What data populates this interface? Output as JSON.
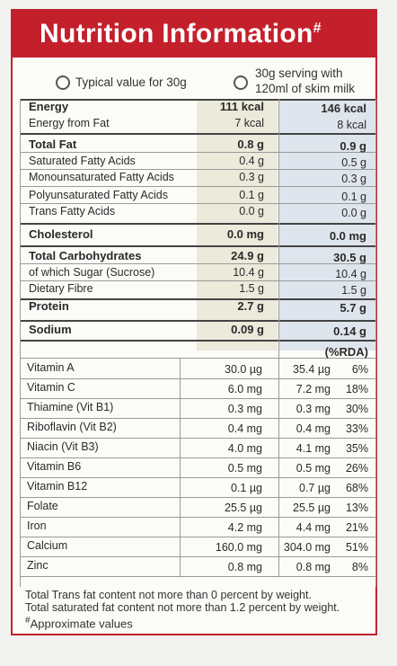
{
  "header": {
    "title": "Nutrition Information",
    "mark": "#"
  },
  "legend": {
    "typical": "Typical value for 30g",
    "serving_line1": "30g serving with",
    "serving_line2": "120ml of skim milk"
  },
  "macros": [
    {
      "label": "Energy",
      "bold": true,
      "v30": "111 kcal",
      "vmilk": "146 kcal"
    },
    {
      "label": "Energy from Fat",
      "bold": false,
      "v30": "7 kcal",
      "vmilk": "8 kcal"
    },
    {
      "label": "Total Fat",
      "bold": true,
      "v30": "0.8 g",
      "vmilk": "0.9 g"
    },
    {
      "label": "Saturated Fatty Acids",
      "bold": false,
      "v30": "0.4 g",
      "vmilk": "0.5 g"
    },
    {
      "label": "Monounsaturated Fatty Acids",
      "bold": false,
      "v30": "0.3 g",
      "vmilk": "0.3 g"
    },
    {
      "label": "Polyunsaturated Fatty Acids",
      "bold": false,
      "v30": "0.1 g",
      "vmilk": "0.1 g"
    },
    {
      "label": "Trans Fatty Acids",
      "bold": false,
      "v30": "0.0 g",
      "vmilk": "0.0 g"
    },
    {
      "label": "Cholesterol",
      "bold": true,
      "v30": "0.0 mg",
      "vmilk": "0.0 mg"
    },
    {
      "label": "Total Carbohydrates",
      "bold": true,
      "v30": "24.9 g",
      "vmilk": "30.5 g"
    },
    {
      "label": "of which Sugar (Sucrose)",
      "bold": false,
      "v30": "10.4 g",
      "vmilk": "10.4 g"
    },
    {
      "label": "Dietary Fibre",
      "bold": false,
      "v30": "1.5 g",
      "vmilk": "1.5 g"
    },
    {
      "label": "Protein",
      "bold": true,
      "v30": "2.7 g",
      "vmilk": "5.7 g"
    },
    {
      "label": "Sodium",
      "bold": true,
      "v30": "0.09 g",
      "vmilk": "0.14 g"
    }
  ],
  "rda_header": "(%RDA)",
  "vitamins": [
    {
      "label": "Vitamin A",
      "v30": "30.0 µg",
      "vmilk": "35.4 µg",
      "rda": "6%"
    },
    {
      "label": "Vitamin C",
      "v30": "6.0 mg",
      "vmilk": "7.2 mg",
      "rda": "18%"
    },
    {
      "label": "Thiamine (Vit B1)",
      "v30": "0.3 mg",
      "vmilk": "0.3 mg",
      "rda": "30%"
    },
    {
      "label": "Riboflavin (Vit B2)",
      "v30": "0.4 mg",
      "vmilk": "0.4 mg",
      "rda": "33%"
    },
    {
      "label": "Niacin (Vit B3)",
      "v30": "4.0 mg",
      "vmilk": "4.1 mg",
      "rda": "35%"
    },
    {
      "label": "Vitamin B6",
      "v30": "0.5 mg",
      "vmilk": "0.5 mg",
      "rda": "26%"
    },
    {
      "label": "Vitamin B12",
      "v30": "0.1 µg",
      "vmilk": "0.7 µg",
      "rda": "68%"
    },
    {
      "label": "Folate",
      "v30": "25.5 µg",
      "vmilk": "25.5 µg",
      "rda": "13%"
    },
    {
      "label": "Iron",
      "v30": "4.2 mg",
      "vmilk": "4.4 mg",
      "rda": "21%"
    },
    {
      "label": "Calcium",
      "v30": "160.0 mg",
      "vmilk": "304.0 mg",
      "rda": "51%"
    },
    {
      "label": "Zinc",
      "v30": "0.8 mg",
      "vmilk": "0.8 mg",
      "rda": "8%"
    }
  ],
  "notes": [
    "Total Trans fat content not more than 0 percent by weight.",
    "Total saturated fat content not more than 1.2 percent by weight."
  ],
  "footnote": {
    "mark": "#",
    "text": "Approximate values"
  }
}
